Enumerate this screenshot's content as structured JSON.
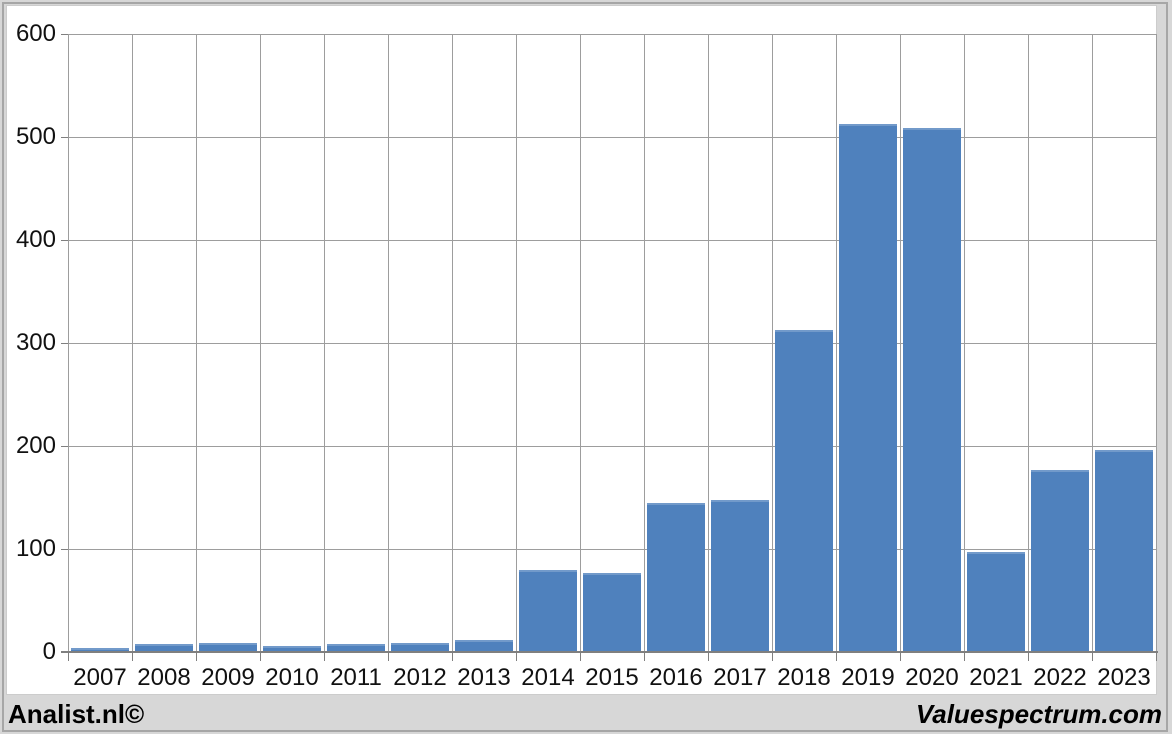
{
  "chart_data": {
    "type": "bar",
    "title": "",
    "xlabel": "",
    "ylabel": "",
    "categories": [
      "2007",
      "2008",
      "2009",
      "2010",
      "2011",
      "2012",
      "2013",
      "2014",
      "2015",
      "2016",
      "2017",
      "2018",
      "2019",
      "2020",
      "2021",
      "2022",
      "2023"
    ],
    "values": [
      4,
      8,
      9,
      6,
      8,
      9,
      12,
      80,
      77,
      145,
      148,
      313,
      513,
      509,
      97,
      177,
      196
    ],
    "ylim": [
      0,
      600
    ],
    "y_ticks": [
      0,
      100,
      200,
      300,
      400,
      500,
      600
    ],
    "grid": "both",
    "legend": "none",
    "bar_color": "#4f81bd",
    "bar_top_highlight": "#729aca",
    "gridline_color": "#9d9d9d",
    "axis_color": "#7f7f7f",
    "plot_background": "#ffffff",
    "outer_background": "#d7d7d7"
  },
  "footer": {
    "left": "Analist.nl©",
    "right": "Valuespectrum.com"
  }
}
